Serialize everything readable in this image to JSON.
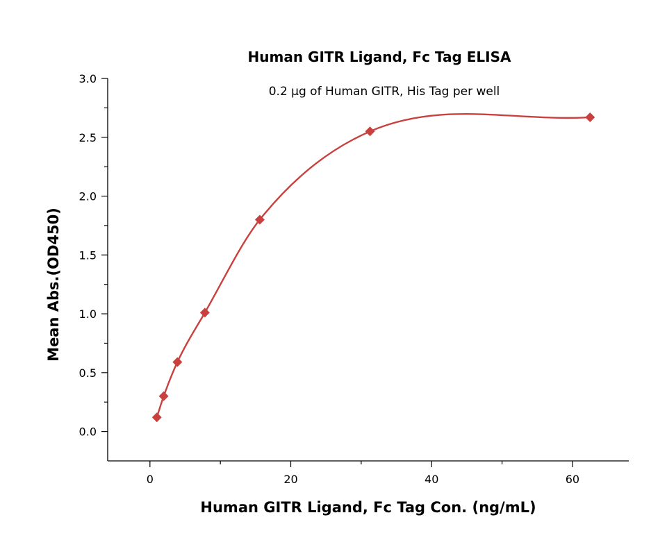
{
  "chart_data": {
    "type": "scatter",
    "title": "Human GITR Ligand, Fc Tag ELISA",
    "subtitle": "0.2 µg of Human GITR, His Tag per well",
    "xlabel": "Human GITR Ligand, Fc Tag Con. (ng/mL)",
    "ylabel": "Mean Abs.(OD450)",
    "xlim": [
      -6,
      68
    ],
    "ylim": [
      -0.25,
      3.0
    ],
    "xticks": [
      0,
      20,
      40,
      60
    ],
    "xtick_labels": [
      "0",
      "20",
      "40",
      "60"
    ],
    "yticks": [
      0.0,
      0.5,
      1.0,
      1.5,
      2.0,
      2.5,
      3.0
    ],
    "ytick_labels": [
      "0.0",
      "0.5",
      "1.0",
      "1.5",
      "2.0",
      "2.5",
      "3.0"
    ],
    "grid": false,
    "marker_color": "#c8413f",
    "line_color": "#c8413f",
    "series": [
      {
        "x": [
          0.98,
          1.95,
          3.9,
          7.8,
          15.6,
          31.25,
          62.5
        ],
        "values": [
          0.12,
          0.3,
          0.59,
          1.01,
          1.8,
          2.55,
          2.67
        ],
        "fit": "curve"
      }
    ]
  }
}
